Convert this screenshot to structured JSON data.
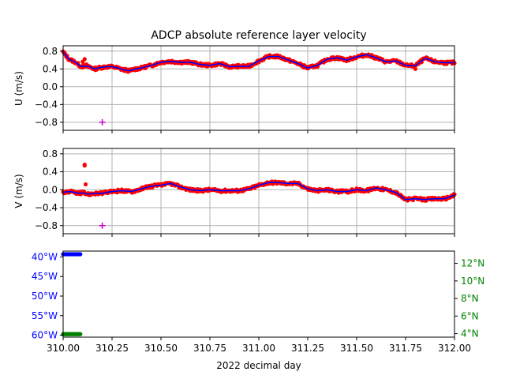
{
  "colors": {
    "raw": "#ff0000",
    "smooth": "#0000ff",
    "marker": "#cc00cc",
    "lon": "#0000ff",
    "lat": "#008000",
    "grid": "#b0b0b0"
  },
  "chart_data": [
    {
      "type": "scatter",
      "title": "ADCP absolute reference layer velocity",
      "xlabel": "",
      "ylabel": "U (m/s)",
      "xlim": [
        310.0,
        312.0
      ],
      "ylim": [
        -0.98,
        0.92
      ],
      "yticks": [
        {
          "value": 0.8,
          "label": "0.8"
        },
        {
          "value": 0.4,
          "label": "0.4"
        },
        {
          "value": 0.0,
          "label": "0.0"
        },
        {
          "value": -0.4,
          "label": "−0.4"
        },
        {
          "value": -0.8,
          "label": "−0.8"
        }
      ],
      "grid": true,
      "anchors": [
        [
          310.0,
          0.78
        ],
        [
          310.03,
          0.62
        ],
        [
          310.06,
          0.56
        ],
        [
          310.09,
          0.46
        ],
        [
          310.13,
          0.46
        ],
        [
          310.16,
          0.4
        ],
        [
          310.19,
          0.43
        ],
        [
          310.22,
          0.45
        ],
        [
          310.25,
          0.45
        ],
        [
          310.28,
          0.42
        ],
        [
          310.31,
          0.38
        ],
        [
          310.34,
          0.36
        ],
        [
          310.37,
          0.4
        ],
        [
          310.4,
          0.42
        ],
        [
          310.43,
          0.46
        ],
        [
          310.46,
          0.49
        ],
        [
          310.5,
          0.55
        ],
        [
          310.55,
          0.57
        ],
        [
          310.6,
          0.55
        ],
        [
          310.65,
          0.55
        ],
        [
          310.7,
          0.5
        ],
        [
          310.75,
          0.48
        ],
        [
          310.8,
          0.52
        ],
        [
          310.85,
          0.45
        ],
        [
          310.9,
          0.46
        ],
        [
          310.95,
          0.46
        ],
        [
          311.0,
          0.58
        ],
        [
          311.05,
          0.68
        ],
        [
          311.1,
          0.68
        ],
        [
          311.15,
          0.6
        ],
        [
          311.2,
          0.52
        ],
        [
          311.25,
          0.42
        ],
        [
          311.3,
          0.48
        ],
        [
          311.35,
          0.62
        ],
        [
          311.4,
          0.65
        ],
        [
          311.45,
          0.6
        ],
        [
          311.5,
          0.67
        ],
        [
          311.55,
          0.72
        ],
        [
          311.6,
          0.65
        ],
        [
          311.65,
          0.56
        ],
        [
          311.7,
          0.58
        ],
        [
          311.75,
          0.48
        ],
        [
          311.8,
          0.47
        ],
        [
          311.85,
          0.64
        ],
        [
          311.9,
          0.56
        ],
        [
          311.95,
          0.54
        ],
        [
          312.0,
          0.54
        ]
      ],
      "extra_points": [
        [
          310.1,
          0.56
        ],
        [
          310.11,
          0.62
        ],
        [
          310.12,
          0.5
        ],
        [
          310.13,
          0.44
        ],
        [
          310.14,
          0.44
        ],
        [
          310.82,
          0.5
        ],
        [
          311.8,
          0.4
        ]
      ],
      "markers": [
        [
          310.2,
          -0.8
        ]
      ]
    },
    {
      "type": "scatter",
      "xlabel": "",
      "ylabel": "V (m/s)",
      "xlim": [
        310.0,
        312.0
      ],
      "ylim": [
        -0.98,
        0.92
      ],
      "yticks": [
        {
          "value": 0.8,
          "label": "0.8"
        },
        {
          "value": 0.4,
          "label": "0.4"
        },
        {
          "value": 0.0,
          "label": "0.0"
        },
        {
          "value": -0.4,
          "label": "−0.4"
        },
        {
          "value": -0.8,
          "label": "−0.8"
        }
      ],
      "grid": true,
      "anchors": [
        [
          310.0,
          -0.06
        ],
        [
          310.03,
          -0.04
        ],
        [
          310.06,
          -0.06
        ],
        [
          310.08,
          -0.08
        ],
        [
          310.1,
          -0.07
        ],
        [
          310.13,
          -0.1
        ],
        [
          310.16,
          -0.08
        ],
        [
          310.2,
          -0.08
        ],
        [
          310.25,
          -0.04
        ],
        [
          310.3,
          -0.02
        ],
        [
          310.35,
          -0.04
        ],
        [
          310.4,
          0.02
        ],
        [
          310.45,
          0.08
        ],
        [
          310.5,
          0.1
        ],
        [
          310.55,
          0.14
        ],
        [
          310.6,
          0.06
        ],
        [
          310.65,
          0.0
        ],
        [
          310.7,
          -0.02
        ],
        [
          310.75,
          0.0
        ],
        [
          310.8,
          -0.02
        ],
        [
          310.85,
          -0.02
        ],
        [
          310.9,
          -0.02
        ],
        [
          310.95,
          0.02
        ],
        [
          311.0,
          0.1
        ],
        [
          311.05,
          0.16
        ],
        [
          311.1,
          0.16
        ],
        [
          311.15,
          0.14
        ],
        [
          311.2,
          0.14
        ],
        [
          311.25,
          0.02
        ],
        [
          311.3,
          -0.02
        ],
        [
          311.35,
          0.0
        ],
        [
          311.4,
          -0.04
        ],
        [
          311.45,
          -0.04
        ],
        [
          311.5,
          0.0
        ],
        [
          311.55,
          -0.02
        ],
        [
          311.6,
          0.04
        ],
        [
          311.65,
          0.0
        ],
        [
          311.7,
          -0.06
        ],
        [
          311.75,
          -0.22
        ],
        [
          311.8,
          -0.2
        ],
        [
          311.85,
          -0.22
        ],
        [
          311.9,
          -0.2
        ],
        [
          311.95,
          -0.2
        ],
        [
          312.0,
          -0.12
        ]
      ],
      "extra_points": [
        [
          310.11,
          0.54
        ],
        [
          310.11,
          0.56
        ],
        [
          310.115,
          0.12
        ],
        [
          310.09,
          -0.1
        ]
      ],
      "markers": [
        [
          310.2,
          -0.8
        ]
      ]
    },
    {
      "type": "scatter",
      "xlabel": "2022 decimal day",
      "xlim": [
        310.0,
        312.0
      ],
      "xticks": [
        {
          "value": 310.0,
          "label": "310.00"
        },
        {
          "value": 310.25,
          "label": "310.25"
        },
        {
          "value": 310.5,
          "label": "310.50"
        },
        {
          "value": 310.75,
          "label": "310.75"
        },
        {
          "value": 311.0,
          "label": "311.00"
        },
        {
          "value": 311.25,
          "label": "311.25"
        },
        {
          "value": 311.5,
          "label": "311.50"
        },
        {
          "value": 311.75,
          "label": "311.75"
        },
        {
          "value": 312.0,
          "label": "312.00"
        }
      ],
      "grid": false,
      "left_axis": {
        "ylim": [
          -60.5,
          -38.5
        ],
        "yticks": [
          {
            "value": -40,
            "label": "40°W"
          },
          {
            "value": -45,
            "label": "45°W"
          },
          {
            "value": -50,
            "label": "50°W"
          },
          {
            "value": -55,
            "label": "55°W"
          },
          {
            "value": -60,
            "label": "60°W"
          }
        ],
        "series": {
          "x_range": [
            310.0,
            310.09
          ],
          "y": -39.3
        }
      },
      "right_axis": {
        "ylim": [
          3.6,
          13.4
        ],
        "yticks": [
          {
            "value": 12,
            "label": "12°N"
          },
          {
            "value": 10,
            "label": "10°N"
          },
          {
            "value": 8,
            "label": "8°N"
          },
          {
            "value": 6,
            "label": "6°N"
          },
          {
            "value": 4,
            "label": "4°N"
          }
        ],
        "series": {
          "x_range": [
            310.0,
            310.09
          ],
          "y": 3.95
        }
      }
    }
  ]
}
